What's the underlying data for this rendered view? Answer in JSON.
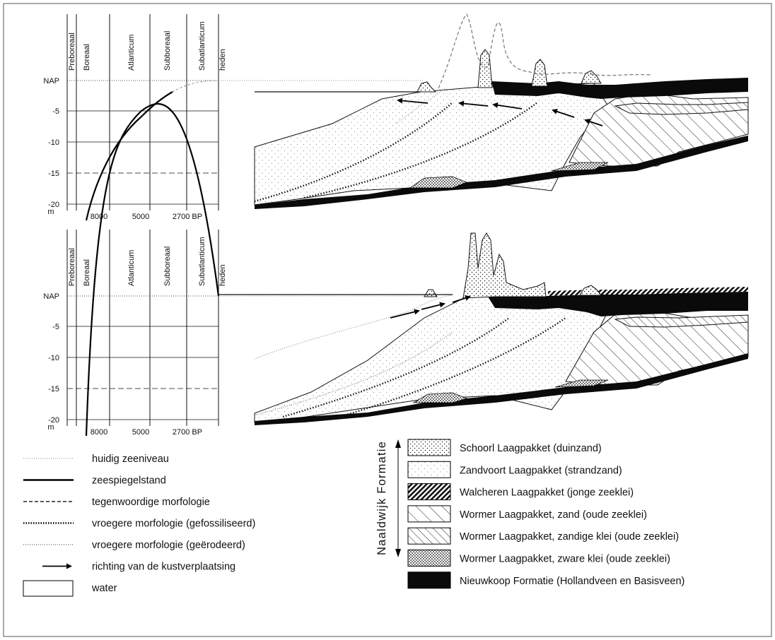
{
  "panels": [
    {
      "periods": [
        "Preboreaal",
        "Boreaal",
        "Atlanticum",
        "Subboreaal",
        "Subatlanticum",
        "heden"
      ],
      "y_labels": [
        "NAP",
        "-5",
        "-10",
        "-15",
        "-20"
      ],
      "y_unit": "m",
      "x_labels": [
        "8000",
        "5000",
        "2700 BP"
      ]
    },
    {
      "periods": [
        "Preboreaal",
        "Boreaal",
        "Atlanticum",
        "Subboreaal",
        "Subatlanticum",
        "heden"
      ],
      "y_labels": [
        "NAP",
        "-5",
        "-10",
        "-15",
        "-20"
      ],
      "y_unit": "m",
      "x_labels": [
        "8000",
        "5000",
        "2700 BP"
      ]
    }
  ],
  "line_legend": [
    {
      "label": "huidig zeeniveau",
      "symbol": "thin-dotted"
    },
    {
      "label": "zeespiegelstand",
      "symbol": "solid"
    },
    {
      "label": "tegenwoordige morfologie",
      "symbol": "dashed"
    },
    {
      "label": "vroegere morfologie (gefossiliseerd)",
      "symbol": "thick-dotted"
    },
    {
      "label": "vroegere morfologie (geërodeerd)",
      "symbol": "fine-dotted"
    },
    {
      "label": "richting van de kustverplaatsing",
      "symbol": "arrow"
    },
    {
      "label": "water",
      "symbol": "box"
    }
  ],
  "formation_group": "Naaldwijk Formatie",
  "units_legend": [
    {
      "label": "Schoorl Laagpakket (duinzand)",
      "pattern": "pat-dune"
    },
    {
      "label": "Zandvoort Laagpakket (strandzand)",
      "pattern": "pat-beach"
    },
    {
      "label": "Walcheren Laagpakket (jonge zeeklei)",
      "pattern": "pat-young-clay"
    },
    {
      "label": "Wormer Laagpakket, zand (oude zeeklei)",
      "pattern": "pat-hatch-wide"
    },
    {
      "label": "Wormer Laagpakket, zandige klei (oude zeeklei)",
      "pattern": "pat-hatch-narrow"
    },
    {
      "label": "Wormer Laagpakket, zware klei (oude zeeklei)",
      "pattern": "pat-heavy-clay"
    },
    {
      "label": "Nieuwkoop Formatie (Hollandveen en Basisveen)",
      "pattern": "pat-peat"
    }
  ]
}
